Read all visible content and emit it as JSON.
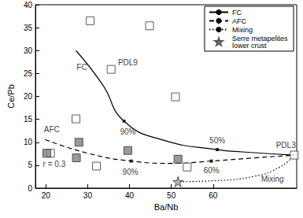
{
  "chart_data": {
    "type": "scatter",
    "x_label": "Ba/Nb",
    "y_label": "Ce/Pb",
    "xlim": [
      17.5,
      80
    ],
    "xticks": [
      20,
      30,
      40,
      50,
      60
    ],
    "ylim": [
      0,
      40
    ],
    "yticks": [
      0,
      5,
      10,
      15,
      20,
      25,
      30,
      35,
      40
    ],
    "grid": false,
    "legend": "upper right",
    "series": [
      {
        "type": "line",
        "name": "FC",
        "color": "#000000",
        "line_style": "solid",
        "values": [
          [
            27.2,
            30.0
          ],
          [
            33.6,
            22.5
          ],
          [
            38.7,
            14.6
          ],
          [
            48.3,
            10.4
          ],
          [
            61.0,
            8.4
          ],
          [
            67.0,
            7.9
          ],
          [
            79.4,
            7.2
          ]
        ],
        "marks": [
          [
            38.7,
            14.6
          ],
          [
            61.0,
            8.4
          ]
        ]
      },
      {
        "type": "line",
        "name": "AFC",
        "color": "#000000",
        "line_style": "dashed",
        "values": [
          [
            19.8,
            10.6
          ],
          [
            30.0,
            7.6
          ],
          [
            40.4,
            5.9
          ],
          [
            50.0,
            5.4
          ],
          [
            59.6,
            5.9
          ],
          [
            70.0,
            6.6
          ],
          [
            79.4,
            7.2
          ]
        ],
        "marks": [
          [
            40.4,
            5.9
          ],
          [
            59.6,
            5.9
          ]
        ]
      },
      {
        "type": "line",
        "name": "Mixing",
        "color": "#000000",
        "line_style": "dotted",
        "values": [
          [
            79.4,
            7.2
          ],
          [
            76.0,
            4.6
          ],
          [
            70.0,
            2.6
          ],
          [
            60.0,
            1.6
          ],
          [
            51.6,
            1.4
          ]
        ]
      },
      {
        "type": "scatter",
        "marker": "square",
        "color": "#ffffff",
        "values": [
          [
            27.2,
            15.1
          ],
          [
            30.6,
            36.5
          ],
          [
            44.8,
            35.4
          ],
          [
            35.6,
            25.9
          ],
          [
            51.0,
            19.9
          ],
          [
            21.1,
            7.6
          ],
          [
            32.1,
            4.8
          ],
          [
            53.8,
            4.6
          ],
          [
            79.4,
            7.2
          ]
        ]
      },
      {
        "type": "scatter",
        "marker": "square",
        "color": "#808080",
        "values": [
          [
            20.2,
            7.6
          ],
          [
            27.9,
            10.0
          ],
          [
            27.3,
            6.6
          ],
          [
            39.6,
            8.2
          ],
          [
            51.6,
            6.3
          ]
        ]
      },
      {
        "type": "scatter",
        "name": "Serre metapelites lower crust",
        "marker": "star",
        "color": "#a0a0a0",
        "values": [
          [
            51.6,
            1.4
          ]
        ]
      }
    ],
    "annotations": [
      {
        "text": "FC",
        "x": 28.6,
        "y": 26.4
      },
      {
        "text": "PDL9",
        "x": 39.6,
        "y": 27.4
      },
      {
        "text": "90%",
        "x": 39.6,
        "y": 12.2
      },
      {
        "text": "50%",
        "x": 61.0,
        "y": 10.4
      },
      {
        "text": "PDL3",
        "x": 77.4,
        "y": 9.4
      },
      {
        "text": "AFC",
        "x": 21.4,
        "y": 12.8
      },
      {
        "text": "r = 0.3",
        "x": 22.0,
        "y": 5.2
      },
      {
        "text": "90%",
        "x": 40.2,
        "y": 3.6
      },
      {
        "text": "60%",
        "x": 59.6,
        "y": 3.8
      },
      {
        "text": "Mixing",
        "x": 74.2,
        "y": 2.0
      }
    ]
  }
}
